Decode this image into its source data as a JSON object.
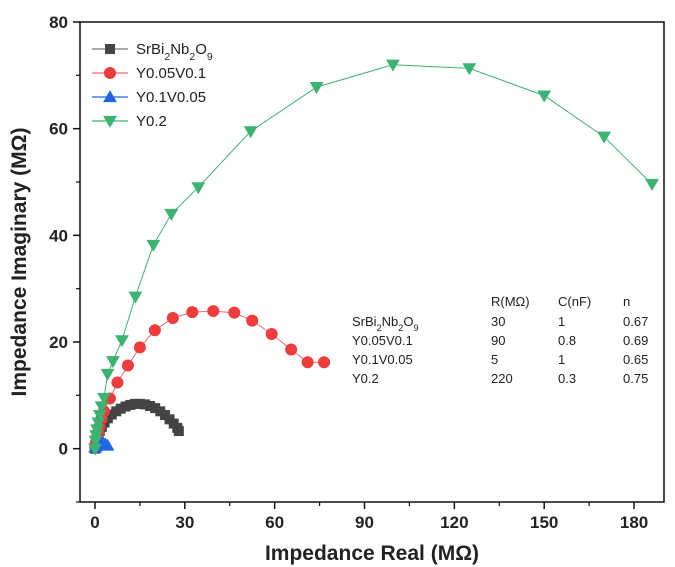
{
  "chart_data": {
    "type": "scatter",
    "title": "",
    "xlabel": "Impedance Real (MΩ)",
    "ylabel": "Impedance Imaginary (MΩ)",
    "xlim": [
      -5,
      190
    ],
    "ylim": [
      -10,
      80
    ],
    "xticks": [
      0,
      30,
      60,
      90,
      120,
      150,
      180
    ],
    "yticks": [
      0,
      20,
      40,
      60,
      80
    ],
    "grid": false,
    "legend_position": "top-left",
    "series": [
      {
        "name": "SrBi2Nb2O9",
        "name_parts": [
          [
            "SrBi",
            false
          ],
          [
            "2",
            true
          ],
          [
            "Nb",
            false
          ],
          [
            "2",
            true
          ],
          [
            "O",
            false
          ],
          [
            "9",
            true
          ]
        ],
        "marker": "square",
        "color": "#444444",
        "line_color": "#777777",
        "x": [
          0.0,
          0.2,
          0.4,
          0.7,
          1.1,
          1.6,
          2.3,
          3.2,
          4.3,
          5.6,
          7.1,
          8.6,
          10.2,
          11.8,
          13.4,
          15.0,
          16.7,
          18.4,
          20.1,
          21.8,
          23.4,
          24.9,
          26.3,
          27.5,
          28.0
        ],
        "y": [
          0.0,
          0.6,
          1.2,
          1.9,
          2.6,
          3.3,
          4.1,
          4.9,
          5.7,
          6.4,
          7.0,
          7.5,
          7.9,
          8.2,
          8.4,
          8.4,
          8.3,
          8.0,
          7.6,
          7.0,
          6.3,
          5.5,
          4.7,
          3.9,
          3.3
        ]
      },
      {
        "name": "Y0.05V0.1",
        "marker": "circle",
        "color": "#ee3b3b",
        "line_color": "#ee6a6a",
        "x": [
          0.1,
          0.3,
          0.6,
          1.0,
          1.5,
          2.2,
          3.0,
          5.0,
          7.5,
          11.0,
          15.0,
          20.0,
          26.0,
          32.5,
          39.5,
          46.5,
          52.5,
          59.0,
          65.5,
          71.0,
          76.5
        ],
        "y": [
          0.3,
          1.1,
          2.0,
          3.0,
          4.1,
          5.6,
          7.0,
          9.4,
          12.4,
          15.6,
          19.0,
          22.2,
          24.5,
          25.6,
          25.8,
          25.5,
          24.0,
          21.5,
          18.6,
          16.2,
          16.2
        ]
      },
      {
        "name": "Y0.1V0.05",
        "marker": "triangle-up",
        "color": "#1f66e5",
        "line_color": "#1f66e5",
        "x": [
          0.1,
          0.3,
          0.6,
          1.0,
          1.5,
          2.1,
          2.8,
          3.5,
          4.2
        ],
        "y": [
          0.2,
          0.5,
          0.8,
          1.0,
          1.1,
          1.1,
          1.0,
          0.8,
          0.6
        ]
      },
      {
        "name": "Y0.2",
        "marker": "triangle-down",
        "color": "#3cb371",
        "line_color": "#3cb371",
        "x": [
          0.0,
          0.2,
          0.4,
          0.7,
          1.1,
          1.6,
          2.2,
          3.0,
          4.2,
          6.0,
          9.0,
          13.5,
          19.5,
          25.5,
          34.5,
          52.0,
          74.0,
          99.5,
          125.0,
          150.0,
          170.0,
          186.0
        ],
        "y": [
          0.0,
          1.5,
          2.5,
          3.6,
          4.9,
          6.3,
          7.9,
          9.5,
          14.0,
          16.4,
          20.3,
          28.5,
          38.2,
          44.0,
          49.0,
          59.5,
          67.8,
          72.0,
          71.3,
          66.2,
          58.5,
          49.6
        ]
      }
    ],
    "table": {
      "headers": [
        "",
        "R(MΩ)",
        "C(nF)",
        "n"
      ],
      "rows": [
        {
          "label_parts": [
            [
              "SrBi",
              false
            ],
            [
              "2",
              true
            ],
            [
              "Nb",
              false
            ],
            [
              "2",
              true
            ],
            [
              "O",
              false
            ],
            [
              "9",
              true
            ]
          ],
          "label": "SrBi2Nb2O9",
          "R": "30",
          "C": "1",
          "n": "0.67"
        },
        {
          "label": "Y0.05V0.1",
          "R": "90",
          "C": "0.8",
          "n": "0.69"
        },
        {
          "label": "Y0.1V0.05",
          "R": "5",
          "C": "1",
          "n": "0.65"
        },
        {
          "label": "Y0.2",
          "R": "220",
          "C": "0.3",
          "n": "0.75"
        }
      ]
    }
  }
}
